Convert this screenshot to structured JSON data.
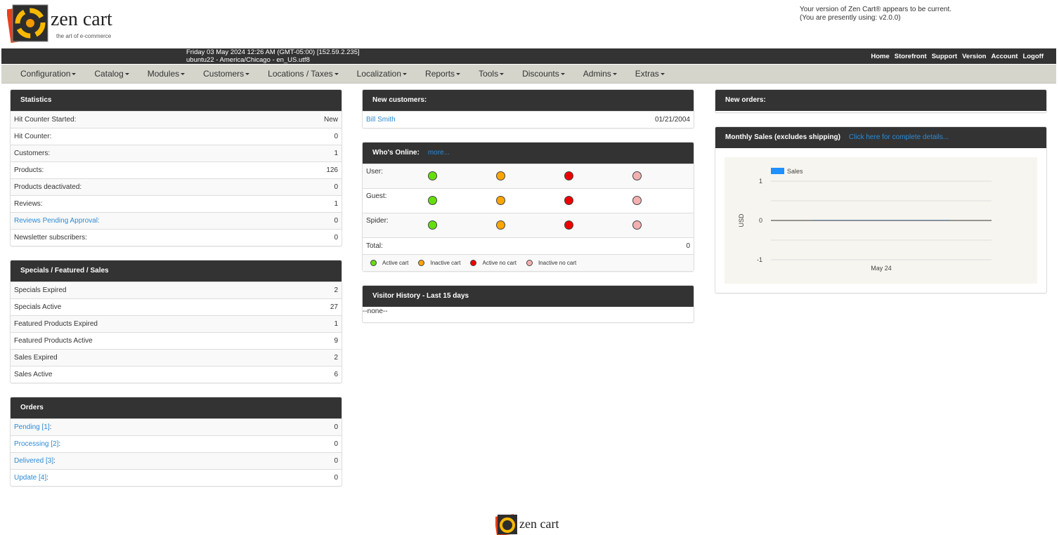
{
  "header": {
    "logo_text": "zen cart",
    "logo_tagline": "the art of e-commerce",
    "version_line1": "Your version of Zen Cart® appears to be current.",
    "version_line2": "(You are presently using: v2.0.0)"
  },
  "topbar": {
    "datetime": "Friday 03 May 2024 12:26 AM (GMT-05:00) [152.59.2.235]",
    "server": "ubuntu22 - America/Chicago - en_US.utf8",
    "links": [
      "Home",
      "Storefront",
      "Support",
      "Version",
      "Account",
      "Logoff"
    ]
  },
  "nav": [
    "Configuration",
    "Catalog",
    "Modules",
    "Customers",
    "Locations / Taxes",
    "Localization",
    "Reports",
    "Tools",
    "Discounts",
    "Admins",
    "Extras"
  ],
  "statistics": {
    "title": "Statistics",
    "rows": [
      {
        "label": "Hit Counter Started:",
        "value": "New"
      },
      {
        "label": "Hit Counter:",
        "value": "0"
      },
      {
        "label": "Customers:",
        "value": "1"
      },
      {
        "label": "Products:",
        "value": "126"
      },
      {
        "label": "Products deactivated:",
        "value": "0"
      },
      {
        "label": "Reviews:",
        "value": "1"
      },
      {
        "label": "Reviews Pending Approval:",
        "value": "0",
        "link": true
      },
      {
        "label": "Newsletter subscribers:",
        "value": "0"
      }
    ]
  },
  "specials": {
    "title": "Specials / Featured / Sales",
    "rows": [
      {
        "label": "Specials Expired",
        "value": "2"
      },
      {
        "label": "Specials Active",
        "value": "27"
      },
      {
        "label": "Featured Products Expired",
        "value": "1"
      },
      {
        "label": "Featured Products Active",
        "value": "9"
      },
      {
        "label": "Sales Expired",
        "value": "2"
      },
      {
        "label": "Sales Active",
        "value": "6"
      }
    ]
  },
  "orders": {
    "title": "Orders",
    "rows": [
      {
        "label": "Pending [1]",
        "value": "0"
      },
      {
        "label": "Processing [2]",
        "value": "0"
      },
      {
        "label": "Delivered [3]",
        "value": "0"
      },
      {
        "label": "Update [4]",
        "value": "0"
      }
    ]
  },
  "new_customers": {
    "title": "New customers:",
    "rows": [
      {
        "name": "Bill Smith",
        "date": "01/21/2004"
      }
    ]
  },
  "whos_online": {
    "title": "Who's Online:",
    "more": "more...",
    "rows": [
      "User:",
      "Guest:",
      "Spider:"
    ],
    "total_label": "Total:",
    "total_value": "0",
    "legend": [
      "Active cart",
      "Inactive cart",
      "Active no cart",
      "Inactive no cart"
    ],
    "colors": [
      "#66dd11",
      "#ffa500",
      "#ee0000",
      "#f4b0b0"
    ]
  },
  "visitor_history": {
    "title": "Visitor History - Last 15 days",
    "value": "--none--"
  },
  "new_orders": {
    "title": "New orders:"
  },
  "monthly_sales": {
    "title": "Monthly Sales (excludes shipping)",
    "link": "Click here for complete details..."
  },
  "chart_data": {
    "type": "bar",
    "categories": [
      "May 24"
    ],
    "series": [
      {
        "name": "Sales",
        "values": [
          0
        ],
        "color": "#1e90ff"
      }
    ],
    "ylabel": "USD",
    "ylim": [
      -1,
      1
    ],
    "yticks": [
      1,
      0,
      -1
    ],
    "grid": true,
    "legend": "top-left"
  },
  "footer": {
    "logo_text": "zen cart"
  }
}
